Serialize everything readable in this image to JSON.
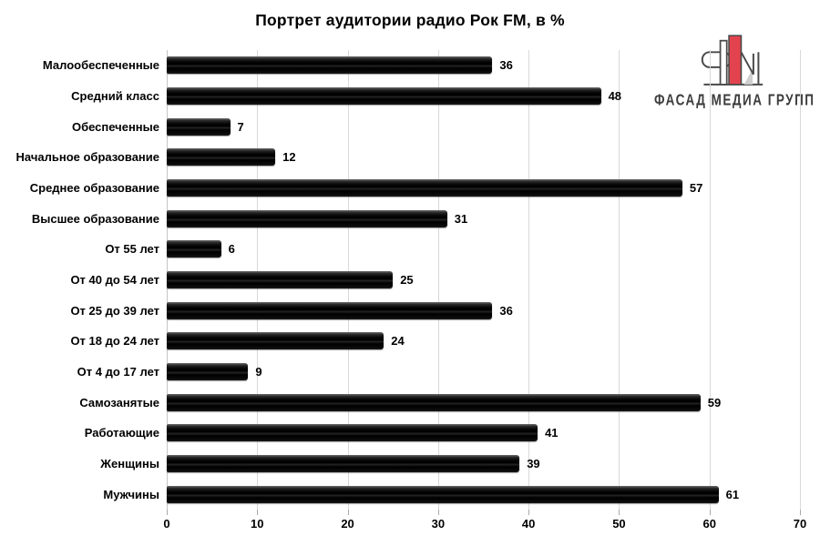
{
  "title": "Портрет аудитории радио Рок FM, в %",
  "logo": {
    "icon": "fm-monogram-icon",
    "text": "ФАСАД МЕДИА ГРУПП",
    "accent_color": "#e3434e",
    "outline_color": "#4a4a4a"
  },
  "chart_data": {
    "type": "bar",
    "orientation": "horizontal",
    "title": "Портрет аудитории радио Рок FM, в %",
    "categories": [
      "Малообеспеченные",
      "Средний класс",
      "Обеспеченные",
      "Начальное образование",
      "Среднее образование",
      "Высшее образование",
      "От 55 лет",
      "От 40 до 54 лет",
      "От 25 до 39 лет",
      "От 18 до 24 лет",
      "От 4 до 17 лет",
      "Самозанятые",
      "Работающие",
      "Женщины",
      "Мужчины"
    ],
    "values": [
      36,
      48,
      7,
      12,
      57,
      31,
      6,
      25,
      36,
      24,
      9,
      59,
      41,
      39,
      61
    ],
    "xlabel": "",
    "ylabel": "",
    "xlim": [
      0,
      70
    ],
    "xticks": [
      0,
      10,
      20,
      30,
      40,
      50,
      60,
      70
    ],
    "grid": true,
    "legend": false,
    "bar_color": "#0d0d0d",
    "gridline_color": "#d9d9d9",
    "value_labels": true
  }
}
